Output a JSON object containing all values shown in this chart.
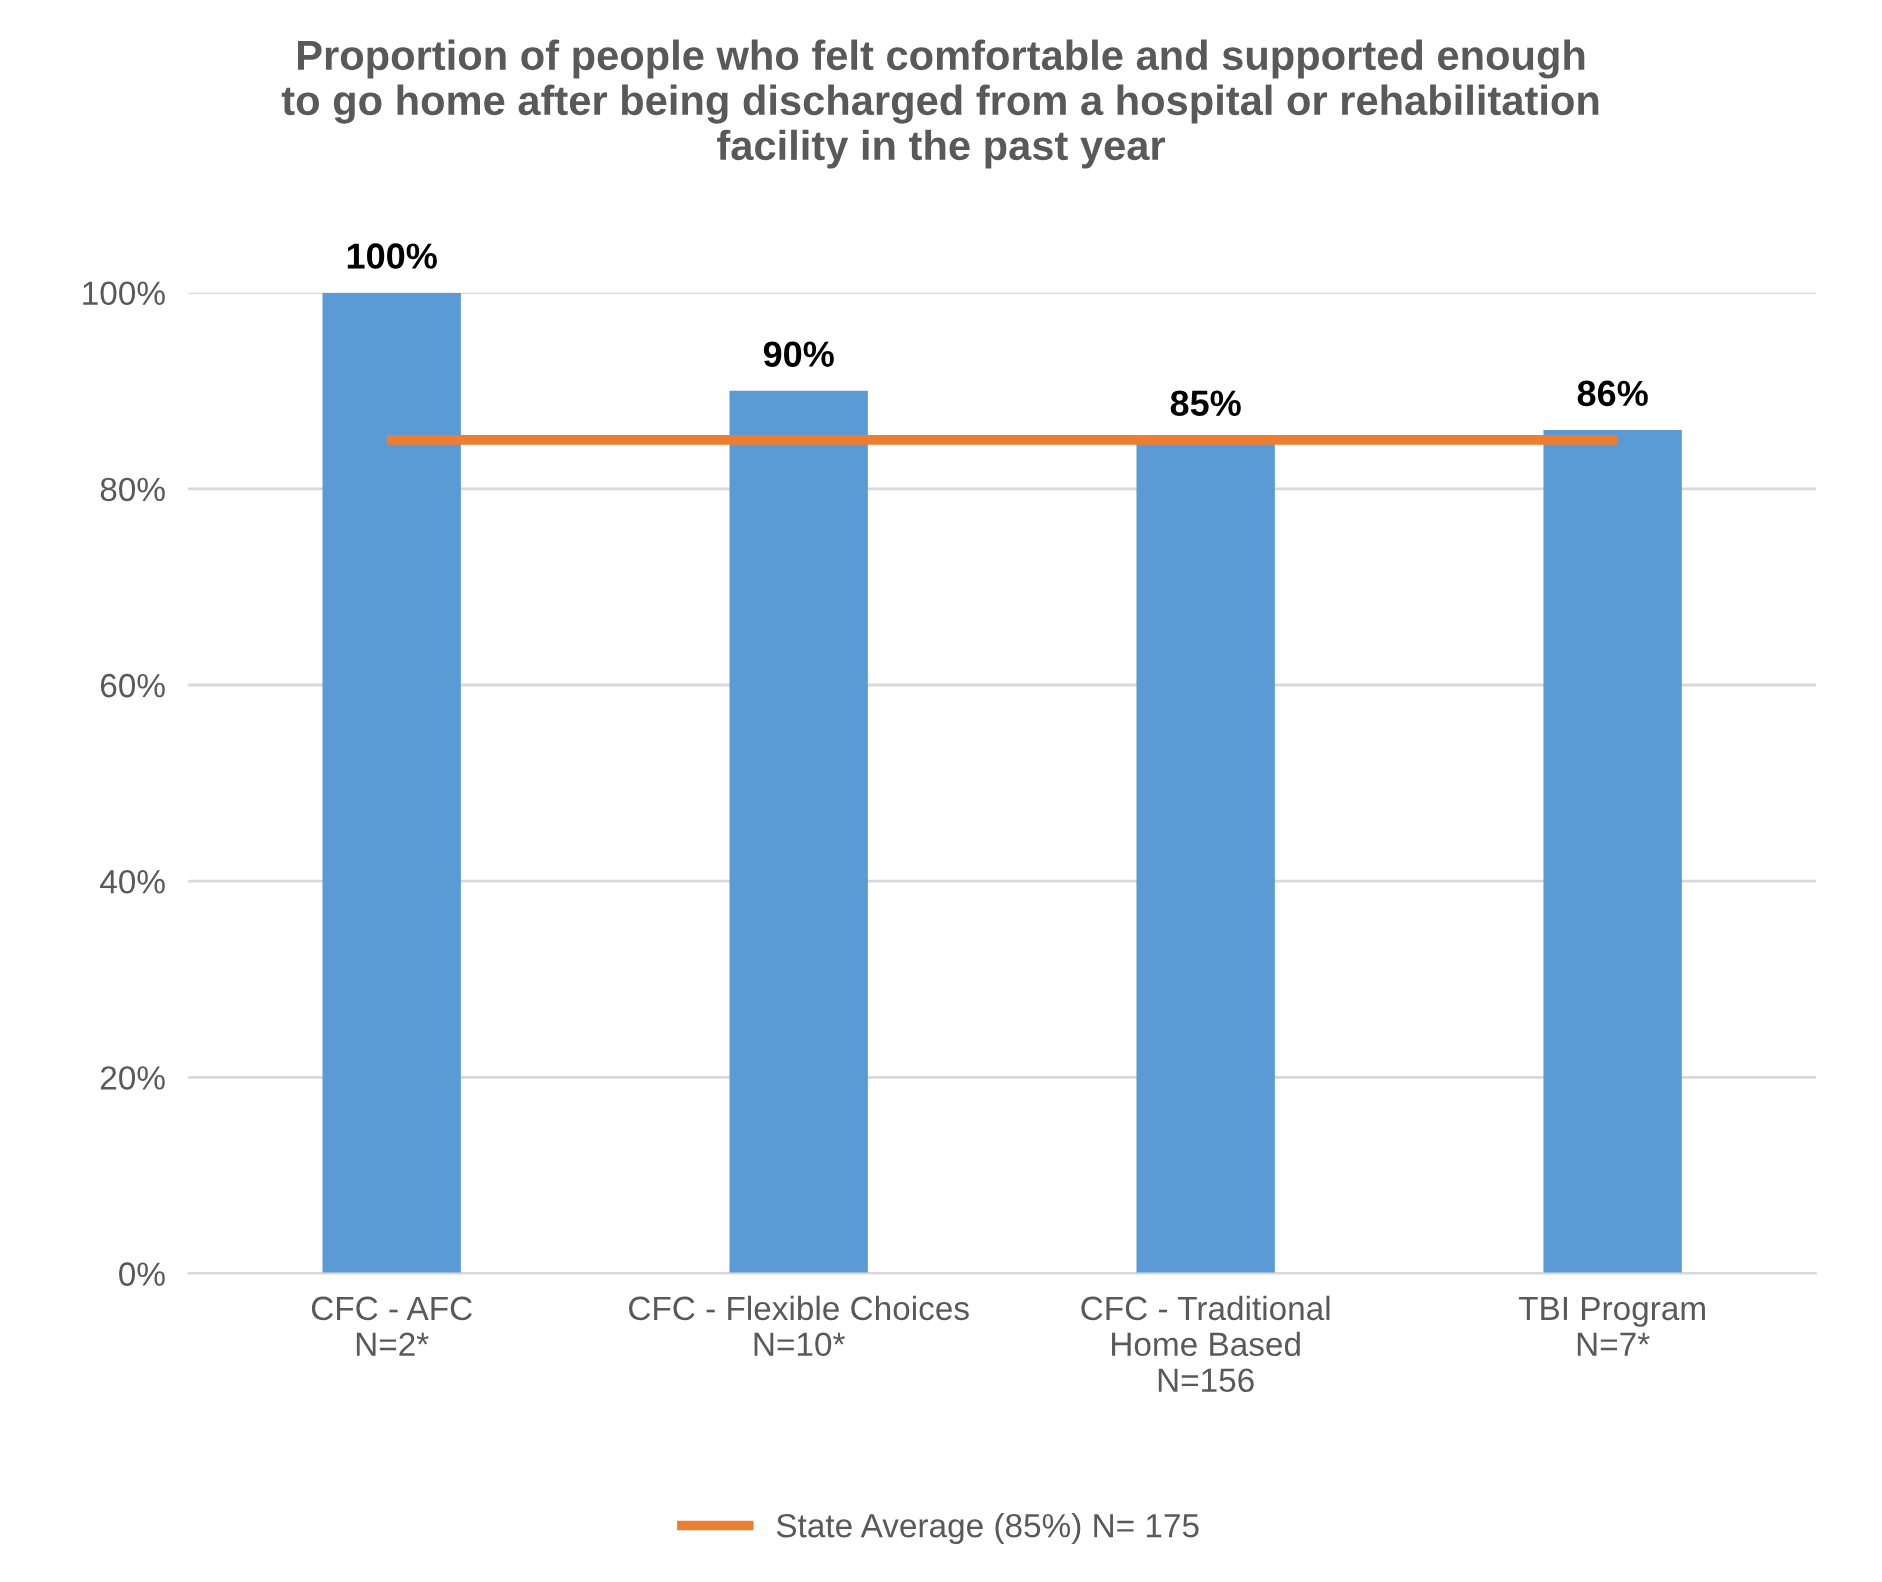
{
  "chart_data": {
    "type": "bar",
    "title": "Proportion of people who felt comfortable and supported enough\nto go home after being discharged from a hospital or rehabilitation\nfacility in the past year",
    "categories": [
      "CFC - AFC\nN=2*",
      "CFC - Flexible Choices\nN=10*",
      "CFC - Traditional\nHome Based\nN=156",
      "TBI Program\nN=7*"
    ],
    "series": [
      {
        "color": "#5b9bd5",
        "values": [
          100,
          90,
          85,
          86
        ],
        "value_labels": [
          "100%",
          "90%",
          "85%",
          "86%"
        ]
      },
      {
        "type": "line",
        "name": "State Average (85%) N= 175",
        "color": "#ed7d31",
        "values": [
          85,
          85,
          85,
          85
        ]
      }
    ],
    "ylim": [
      0,
      100
    ],
    "yticks": [
      {
        "value": 0,
        "label": "0%"
      },
      {
        "value": 20,
        "label": "20%"
      },
      {
        "value": 40,
        "label": "40%"
      },
      {
        "value": 60,
        "label": "60%"
      },
      {
        "value": 80,
        "label": "80%"
      },
      {
        "value": 100,
        "label": "100%"
      }
    ],
    "grid": "y",
    "legend": "bottom"
  }
}
